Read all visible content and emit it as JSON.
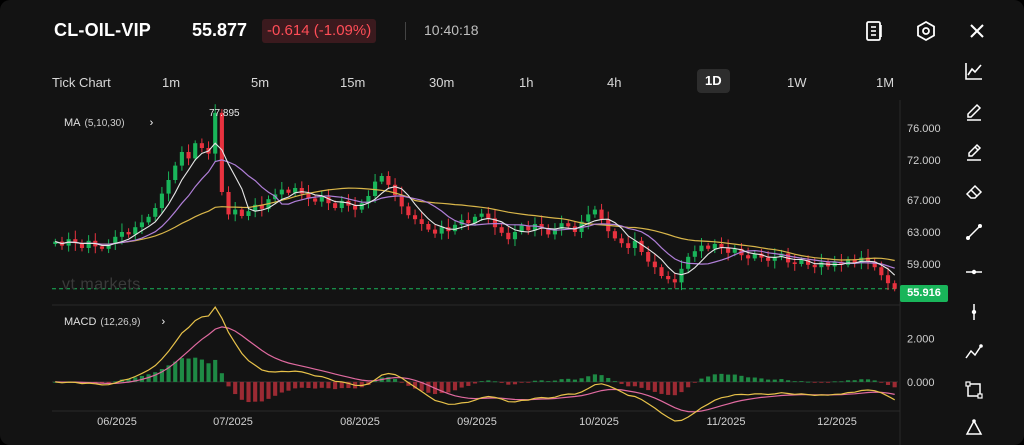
{
  "header": {
    "symbol": "CL-OIL-VIP",
    "price": "55.877",
    "change": "-0.614 (-1.09%)",
    "time": "10:40:18"
  },
  "tabs": [
    {
      "label": "Tick Chart"
    },
    {
      "label": "1m"
    },
    {
      "label": "5m"
    },
    {
      "label": "15m"
    },
    {
      "label": "30m"
    },
    {
      "label": "1h"
    },
    {
      "label": "4h"
    },
    {
      "label": "1D",
      "active": true
    },
    {
      "label": "1W"
    },
    {
      "label": "1M"
    }
  ],
  "indicators": {
    "ma_name": "MA",
    "ma_params": "(5,10,30)",
    "macd_name": "MACD",
    "macd_params": "(12,26,9)"
  },
  "watermark": {
    "brand": "vt",
    "name": "markets"
  },
  "colors": {
    "up": "#19b55a",
    "down": "#e8323f",
    "ma5": "#e6e6e6",
    "ma10": "#b07fd8",
    "ma30": "#d9b64a",
    "dif": "#e8c24a",
    "dea": "#e06aa0"
  },
  "chart_data": {
    "type": "candlestick",
    "price_axis": [
      "76.000",
      "72.000",
      "67.000",
      "63.000",
      "59.000"
    ],
    "macd_axis": [
      "2.000",
      "0.000"
    ],
    "date_labels": [
      "06/2025",
      "07/2025",
      "08/2025",
      "09/2025",
      "10/2025",
      "11/2025",
      "12/2025"
    ],
    "last_price": "55.916",
    "max_price_label": "77.895",
    "ylim": [
      54.5,
      78.5
    ],
    "close_path": [
      61.8,
      61.3,
      62.1,
      61.6,
      61.0,
      61.9,
      61.2,
      60.9,
      61.5,
      62.4,
      63.0,
      62.7,
      63.6,
      64.2,
      64.9,
      66.0,
      67.8,
      69.5,
      71.3,
      73.0,
      72.2,
      74.1,
      73.5,
      72.8,
      77.9,
      68.0,
      65.2,
      65.8,
      65.0,
      65.6,
      66.4,
      65.9,
      67.1,
      67.7,
      68.3,
      67.9,
      68.5,
      67.8,
      67.2,
      66.8,
      67.4,
      66.6,
      66.0,
      66.9,
      66.3,
      65.8,
      66.6,
      67.5,
      69.3,
      70.0,
      68.9,
      67.6,
      66.2,
      65.1,
      64.6,
      64.0,
      63.3,
      62.8,
      63.6,
      63.1,
      63.9,
      64.5,
      64.1,
      64.9,
      65.3,
      64.7,
      63.6,
      62.9,
      62.1,
      63.0,
      63.8,
      63.2,
      64.0,
      63.5,
      62.7,
      63.4,
      64.1,
      63.7,
      63.0,
      64.3,
      65.2,
      65.8,
      64.6,
      63.1,
      62.2,
      61.6,
      61.0,
      61.9,
      60.5,
      59.3,
      58.6,
      57.5,
      57.1,
      56.7,
      58.4,
      59.9,
      60.6,
      61.3,
      60.9,
      61.5,
      61.0,
      60.4,
      60.9,
      60.1,
      59.7,
      60.3,
      59.8,
      59.4,
      59.9,
      60.3,
      59.2,
      59.0,
      59.5,
      58.9,
      58.6,
      59.2,
      58.7,
      59.3,
      58.9,
      59.6,
      59.1,
      59.8,
      59.3,
      58.6,
      57.6,
      56.6,
      55.9
    ]
  }
}
